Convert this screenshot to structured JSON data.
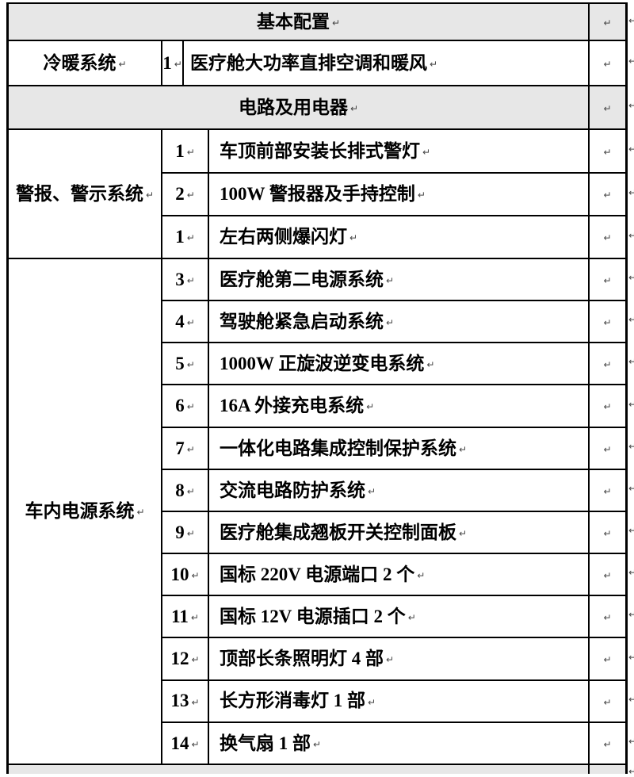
{
  "pilcrow": "↵",
  "colors": {
    "header_bg": "#e7e7e7",
    "border": "#000000"
  },
  "table": {
    "section1_header": "基本配置",
    "cooling": {
      "category": "冷暖系统",
      "num": "1",
      "desc": "医疗舱大功率直排空调和暖风"
    },
    "section2_header": "电路及用电器",
    "alarm": {
      "category": "警报、警示系统",
      "items": [
        {
          "num": "1",
          "desc": "车顶前部安装长排式警灯"
        },
        {
          "num": "2",
          "desc": "100W 警报器及手持控制"
        },
        {
          "num": "1",
          "desc": "左右两侧爆闪灯"
        }
      ]
    },
    "power": {
      "category": "车内电源系统",
      "items": [
        {
          "num": "3",
          "desc": "医疗舱第二电源系统"
        },
        {
          "num": "4",
          "desc": "驾驶舱紧急启动系统"
        },
        {
          "num": "5",
          "desc": "1000W 正旋波逆变电系统"
        },
        {
          "num": "6",
          "desc": "16A 外接充电系统"
        },
        {
          "num": "7",
          "desc": "一体化电路集成控制保护系统"
        },
        {
          "num": "8",
          "desc": "交流电路防护系统"
        },
        {
          "num": "9",
          "desc": "医疗舱集成翘板开关控制面板"
        },
        {
          "num": "10",
          "desc": "国标 220V 电源端口 2 个"
        },
        {
          "num": "11",
          "desc": "国标 12V 电源插口 2 个"
        },
        {
          "num": "12",
          "desc": "顶部长条照明灯 4 部"
        },
        {
          "num": "13",
          "desc": "长方形消毒灯 1 部"
        },
        {
          "num": "14",
          "desc": "换气扇 1 部"
        }
      ]
    }
  }
}
